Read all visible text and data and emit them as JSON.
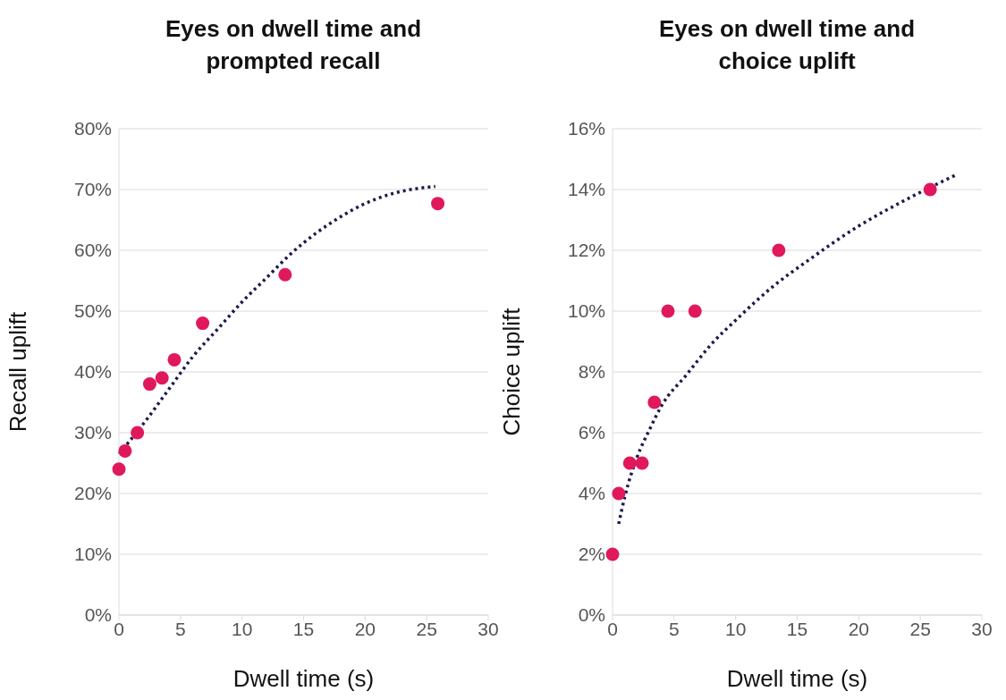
{
  "chart_data": [
    {
      "type": "scatter",
      "title": "Eyes on dwell time and prompted recall",
      "xlabel": "Dwell time (s)",
      "ylabel": "Recall uplift",
      "xlim": [
        0,
        30
      ],
      "xticks": [
        0,
        5,
        10,
        15,
        20,
        25,
        30
      ],
      "ylim": [
        0,
        80
      ],
      "yticks": [
        {
          "value": 0,
          "label": "0%"
        },
        {
          "value": 10,
          "label": "10%"
        },
        {
          "value": 20,
          "label": "20%"
        },
        {
          "value": 30,
          "label": "30%"
        },
        {
          "value": 40,
          "label": "40%"
        },
        {
          "value": 50,
          "label": "50%"
        },
        {
          "value": 60,
          "label": "60%"
        },
        {
          "value": 70,
          "label": "70%"
        },
        {
          "value": 80,
          "label": "80%"
        }
      ],
      "grid": "y",
      "legend": false,
      "marker": "circle",
      "series": [
        {
          "color": "#e0185c",
          "x": [
            0,
            0.5,
            1.5,
            2.5,
            3.5,
            4.5,
            6.8,
            13.5,
            25.9
          ],
          "values": [
            24,
            27,
            30,
            38,
            39,
            42,
            48,
            56,
            67.7
          ]
        },
        {
          "type": "line",
          "color": "#1c1a4d",
          "line_style": "dotted",
          "marker": "none",
          "x": [
            0,
            2,
            4,
            6,
            8,
            10,
            12,
            14,
            16,
            18,
            20,
            22,
            24,
            25.7
          ],
          "values": [
            26.5,
            31.5,
            37,
            42.5,
            47,
            51.5,
            55.5,
            59.5,
            62.8,
            65.5,
            67.7,
            69.2,
            70.1,
            70.5
          ]
        }
      ]
    },
    {
      "type": "scatter",
      "title": "Eyes on dwell time and choice uplift",
      "xlabel": "Dwell time (s)",
      "ylabel": "Choice uplift",
      "xlim": [
        0,
        30
      ],
      "xticks": [
        0,
        5,
        10,
        15,
        20,
        25,
        30
      ],
      "ylim": [
        0,
        16
      ],
      "yticks": [
        {
          "value": 0,
          "label": "0%"
        },
        {
          "value": 2,
          "label": "2%"
        },
        {
          "value": 4,
          "label": "4%"
        },
        {
          "value": 6,
          "label": "6%"
        },
        {
          "value": 8,
          "label": "8%"
        },
        {
          "value": 10,
          "label": "10%"
        },
        {
          "value": 12,
          "label": "12%"
        },
        {
          "value": 14,
          "label": "14%"
        },
        {
          "value": 16,
          "label": "16%"
        }
      ],
      "grid": "y",
      "legend": false,
      "marker": "circle",
      "series": [
        {
          "color": "#e0185c",
          "x": [
            0,
            0.5,
            1.4,
            2.4,
            3.4,
            4.5,
            6.7,
            13.5,
            25.8
          ],
          "values": [
            2,
            4,
            5,
            5,
            7,
            10,
            10,
            12,
            14
          ]
        },
        {
          "type": "line",
          "color": "#1c1a4d",
          "line_style": "dotted",
          "marker": "none",
          "x": [
            0.5,
            1,
            2,
            3,
            4,
            6,
            8,
            10,
            13,
            16,
            20,
            24,
            28
          ],
          "values": [
            3.0,
            3.9,
            5.2,
            6.1,
            6.9,
            7.9,
            8.9,
            9.7,
            10.8,
            11.7,
            12.8,
            13.7,
            14.5
          ]
        }
      ]
    }
  ]
}
